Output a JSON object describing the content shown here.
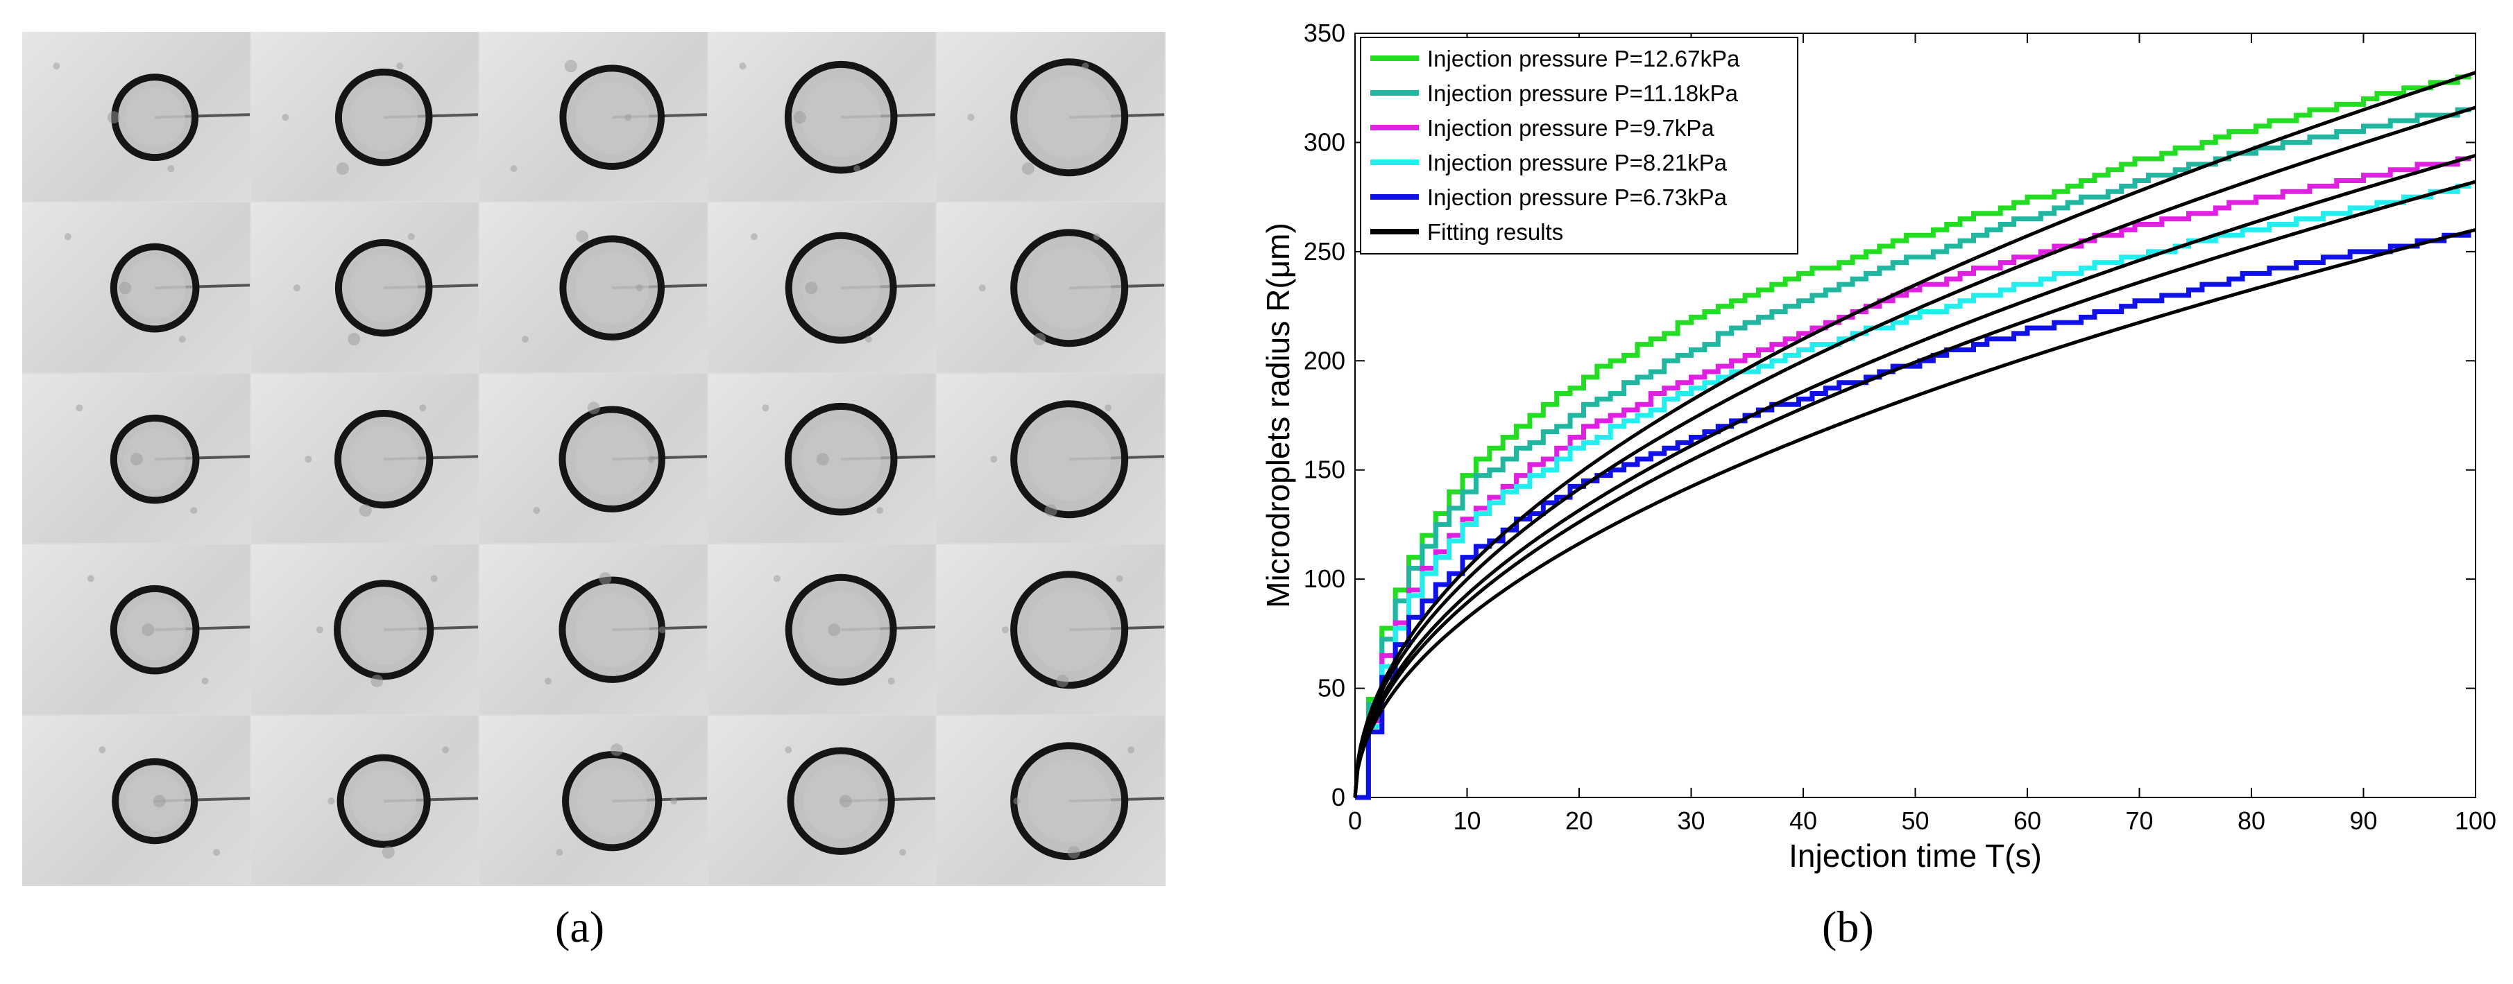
{
  "panel_a": {
    "label": "(a)",
    "rows": 5,
    "cols": 5,
    "droplet_growth": [
      [
        0.52,
        0.68,
        0.8,
        0.92,
        1.0
      ],
      [
        0.55,
        0.68,
        0.8,
        0.9,
        1.0
      ],
      [
        0.55,
        0.7,
        0.82,
        0.92,
        1.0
      ],
      [
        0.55,
        0.72,
        0.82,
        0.9,
        1.0
      ],
      [
        0.5,
        0.62,
        0.72,
        0.84,
        1.0
      ]
    ]
  },
  "panel_b": {
    "label": "(b)"
  },
  "chart_data": {
    "type": "line",
    "xlabel": "Injection time T(s)",
    "ylabel": "Microdroplets radius R(μm)",
    "xlim": [
      0,
      100
    ],
    "ylim": [
      0,
      350
    ],
    "xticks": [
      "0",
      "10",
      "20",
      "30",
      "40",
      "50",
      "60",
      "70",
      "80",
      "90",
      "100"
    ],
    "yticks": [
      "0",
      "50",
      "100",
      "150",
      "200",
      "250",
      "300",
      "350"
    ],
    "legend_position": "top-left",
    "x": [
      0,
      1,
      2,
      5,
      10,
      20,
      30,
      40,
      50,
      60,
      70,
      80,
      90,
      100
    ],
    "series": [
      {
        "name": "Injection pressure P=12.67kPa",
        "color": "#22dd22",
        "values": [
          0,
          38,
          72,
          113,
          151,
          192,
          220,
          240,
          258,
          274,
          292,
          307,
          320,
          331
        ]
      },
      {
        "name": "Injection pressure P=11.18kPa",
        "color": "#20b6a0",
        "values": [
          0,
          35,
          68,
          108,
          144,
          178,
          206,
          228,
          248,
          266,
          283,
          297,
          307,
          316
        ]
      },
      {
        "name": "Injection pressure P=9.7kPa",
        "color": "#e020e0",
        "values": [
          0,
          30,
          60,
          98,
          130,
          168,
          193,
          214,
          234,
          248,
          262,
          274,
          285,
          293
        ]
      },
      {
        "name": "Injection pressure P=8.21kPa",
        "color": "#22eeee",
        "values": [
          0,
          28,
          56,
          95,
          128,
          162,
          188,
          205,
          221,
          236,
          249,
          260,
          271,
          281
        ]
      },
      {
        "name": "Injection pressure P=6.73kPa",
        "color": "#1010e8",
        "values": [
          0,
          26,
          50,
          86,
          112,
          145,
          166,
          184,
          200,
          214,
          227,
          240,
          250,
          259
        ]
      }
    ],
    "fits": [
      {
        "name": "Fitting results",
        "color": "#000000",
        "amp": 33.2,
        "exp": 0.5
      },
      {
        "amp": 31.6,
        "exp": 0.5
      },
      {
        "amp": 29.4,
        "exp": 0.5
      },
      {
        "amp": 28.2,
        "exp": 0.5
      },
      {
        "amp": 26.0,
        "exp": 0.5
      }
    ],
    "fit_legend_label": "Fitting results"
  }
}
